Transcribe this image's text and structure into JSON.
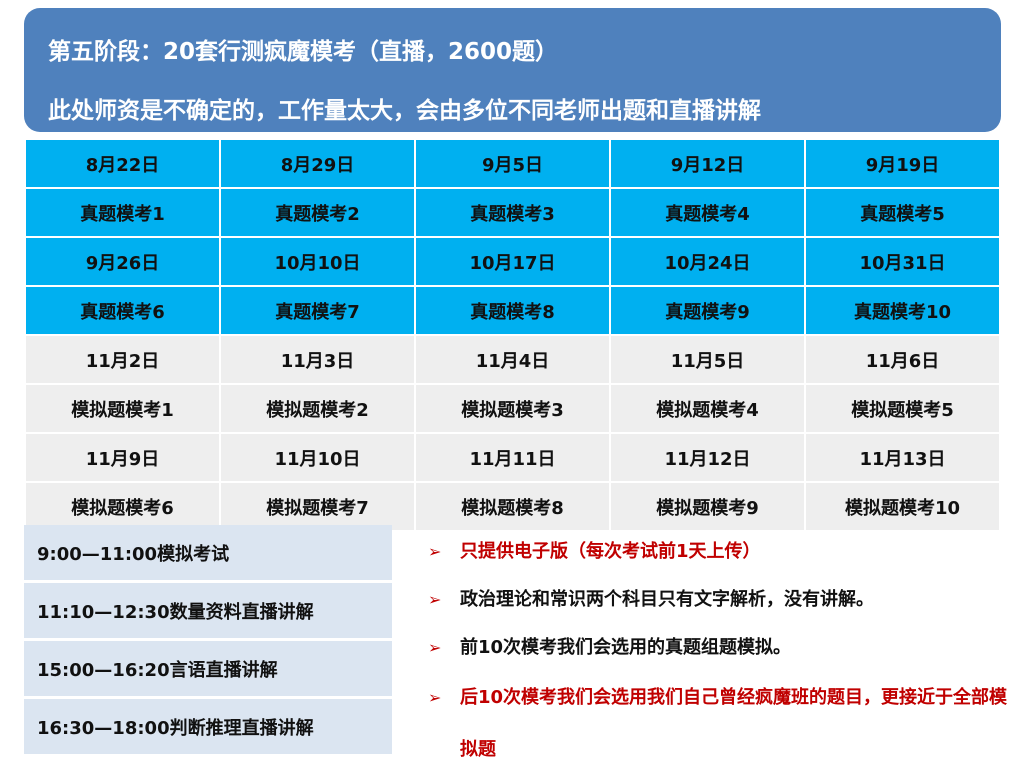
{
  "header": {
    "title": "第五阶段：20套行测疯魔模考（直播，2600题）",
    "subtitle": "此处师资是不确定的，工作量太大，会由多位不同老师出题和直播讲解"
  },
  "schedule": {
    "rows": [
      [
        "8月22日",
        "8月29日",
        "9月5日",
        "9月12日",
        "9月19日"
      ],
      [
        "真题模考1",
        "真题模考2",
        "真题模考3",
        "真题模考4",
        "真题模考5"
      ],
      [
        "9月26日",
        "10月10日",
        "10月17日",
        "10月24日",
        "10月31日"
      ],
      [
        "真题模考6",
        "真题模考7",
        "真题模考8",
        "真题模考9",
        "真题模考10"
      ],
      [
        "11月2日",
        "11月3日",
        "11月4日",
        "11月5日",
        "11月6日"
      ],
      [
        "模拟题模考1",
        "模拟题模考2",
        "模拟题模考3",
        "模拟题模考4",
        "模拟题模考5"
      ],
      [
        "11月9日",
        "11月10日",
        "11月11日",
        "11月12日",
        "11月13日"
      ],
      [
        "模拟题模考6",
        "模拟题模考7",
        "模拟题模考8",
        "模拟题模考9",
        "模拟题模考10"
      ]
    ]
  },
  "times": [
    "9:00—11:00模拟考试",
    "11:10—12:30数量资料直播讲解",
    "15:00—16:20言语直播讲解",
    "16:30—18:00判断推理直播讲解"
  ],
  "notes": [
    "只提供电子版（每次考试前1天上传）",
    "政治理论和常识两个科目只有文字解析，没有讲解。",
    "前10次模考我们会选用的真题组题模拟。",
    "后10次模考我们会选用我们自己曾经疯魔班的题目，更接近于全部模拟题"
  ],
  "bullet": "➢",
  "colors": {
    "header_bg": "#4f81bd",
    "blue_row": "#00b0f0",
    "gray_row": "#eeeeee",
    "time_bg": "#dbe5f1",
    "red": "#c00000"
  }
}
